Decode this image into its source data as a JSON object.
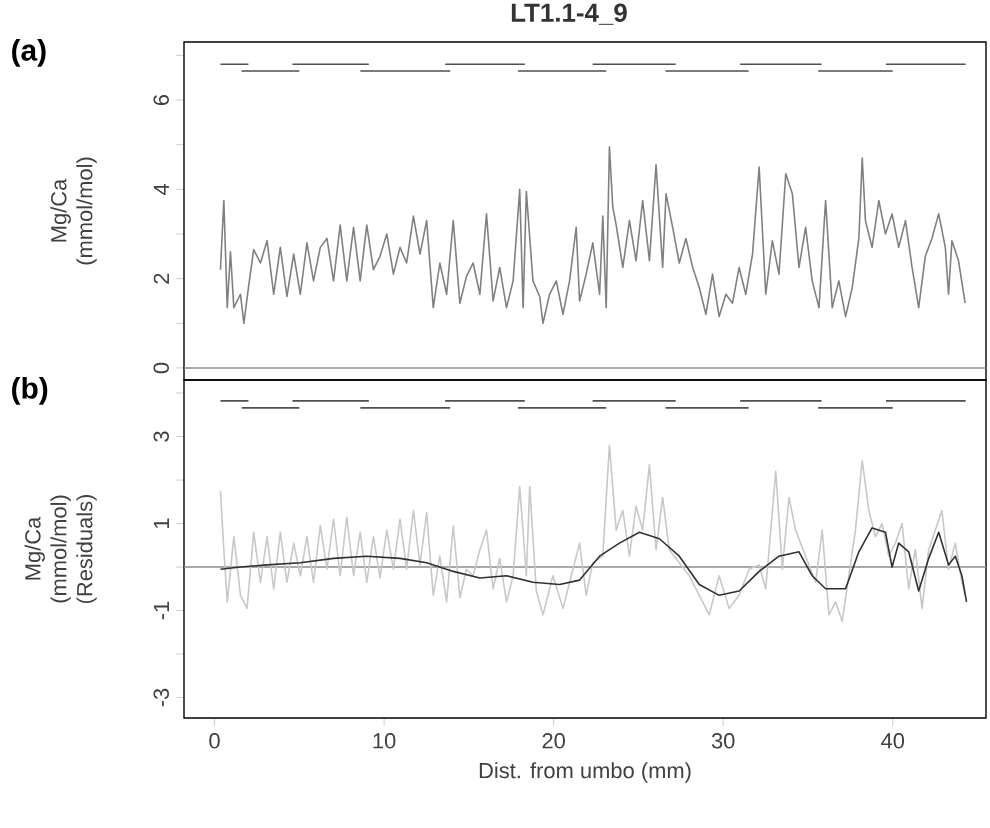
{
  "chart_data": [
    {
      "type": "line",
      "title": "LT1.1-4_9",
      "annotations": [
        "(a)"
      ],
      "ylabel": "Mg/Ca (mmol/mol)",
      "xlim": [
        -1.8,
        45.5
      ],
      "ylim": [
        -0.27,
        7.3
      ],
      "tick_labels": "y",
      "yticks": [
        0,
        {
          "value": 1,
          "label": null
        },
        2,
        {
          "value": 3,
          "label": null
        },
        4,
        {
          "value": 5,
          "label": null
        },
        6,
        {
          "value": 7,
          "label": null
        }
      ],
      "ref_lines": [
        {
          "axis": "y",
          "value": 0,
          "color": "#8c8c8c"
        }
      ],
      "series": [
        {
          "color": "#808080",
          "x": [
            0.35,
            0.55,
            0.75,
            0.94,
            1.14,
            1.53,
            1.73,
            2.0,
            2.31,
            2.71,
            3.1,
            3.49,
            3.88,
            4.27,
            4.67,
            5.06,
            5.45,
            5.84,
            6.24,
            6.63,
            7.02,
            7.41,
            7.8,
            8.2,
            8.59,
            8.98,
            9.37,
            9.76,
            10.16,
            10.55,
            10.94,
            11.33,
            11.73,
            12.12,
            12.51,
            12.9,
            13.29,
            13.69,
            14.08,
            14.47,
            14.86,
            15.25,
            15.65,
            16.04,
            16.43,
            16.82,
            17.22,
            17.61,
            18.0,
            18.2,
            18.39,
            18.78,
            19.18,
            19.37,
            19.76,
            20.16,
            20.55,
            20.94,
            21.33,
            21.53,
            21.92,
            22.31,
            22.71,
            22.9,
            23.1,
            23.29,
            23.49,
            23.69,
            24.08,
            24.47,
            24.86,
            25.25,
            25.65,
            26.04,
            26.43,
            26.63,
            27.02,
            27.41,
            27.8,
            28.2,
            28.59,
            28.98,
            29.37,
            29.76,
            30.16,
            30.55,
            30.94,
            31.33,
            31.73,
            32.12,
            32.51,
            32.9,
            33.29,
            33.69,
            34.08,
            34.47,
            34.86,
            35.25,
            35.65,
            36.04,
            36.43,
            36.82,
            37.22,
            37.61,
            38.0,
            38.2,
            38.39,
            38.78,
            39.18,
            39.57,
            39.96,
            40.35,
            40.75,
            41.14,
            41.53,
            41.92,
            42.31,
            42.71,
            43.1,
            43.29,
            43.49,
            43.88,
            44.27
          ],
          "values": [
            2.2,
            3.75,
            1.35,
            2.6,
            1.35,
            1.65,
            1.0,
            1.8,
            2.65,
            2.35,
            2.85,
            1.65,
            2.7,
            1.6,
            2.55,
            1.65,
            2.8,
            1.95,
            2.7,
            2.9,
            1.95,
            3.2,
            1.95,
            3.15,
            1.95,
            3.2,
            2.2,
            2.5,
            3.0,
            2.1,
            2.7,
            2.35,
            3.4,
            2.55,
            3.3,
            1.35,
            2.35,
            1.65,
            3.3,
            1.45,
            2.05,
            2.35,
            1.65,
            3.45,
            1.5,
            2.25,
            1.35,
            1.95,
            4.0,
            1.35,
            3.95,
            1.95,
            1.6,
            1.0,
            1.65,
            1.95,
            1.2,
            1.95,
            3.15,
            1.5,
            2.1,
            2.8,
            1.65,
            3.4,
            1.35,
            4.95,
            3.6,
            3.2,
            2.25,
            3.3,
            2.4,
            3.75,
            2.4,
            4.55,
            2.25,
            3.9,
            3.15,
            2.35,
            2.9,
            2.25,
            1.8,
            1.2,
            2.1,
            1.15,
            1.65,
            1.45,
            2.25,
            1.65,
            2.55,
            4.5,
            1.65,
            2.85,
            2.1,
            4.35,
            3.9,
            2.25,
            3.15,
            1.95,
            1.35,
            3.75,
            1.35,
            1.95,
            1.15,
            1.8,
            2.9,
            4.7,
            3.3,
            2.7,
            3.75,
            3.0,
            3.45,
            2.7,
            3.3,
            2.25,
            1.35,
            2.5,
            2.9,
            3.45,
            2.7,
            1.65,
            2.85,
            2.4,
            1.45
          ]
        },
        {
          "color": "#505050",
          "x": [
            0.35,
            2.0,
            null,
            4.6,
            9.1,
            null,
            13.6,
            18.3,
            null,
            22.3,
            27.2,
            null,
            31.0,
            35.8,
            null,
            39.6,
            44.3,
            null,
            1.6,
            5.0,
            null,
            8.6,
            13.9,
            null,
            17.9,
            23.1,
            null,
            26.6,
            31.5,
            null,
            35.6,
            40.0
          ],
          "values": [
            6.8,
            6.8,
            null,
            6.8,
            6.8,
            null,
            6.8,
            6.8,
            null,
            6.8,
            6.8,
            null,
            6.8,
            6.8,
            null,
            6.8,
            6.8,
            null,
            6.65,
            6.65,
            null,
            6.65,
            6.65,
            null,
            6.65,
            6.65,
            null,
            6.65,
            6.65,
            null,
            6.65,
            6.65
          ]
        }
      ]
    },
    {
      "type": "line",
      "annotations": [
        "(b)"
      ],
      "ylabel": "Mg/Ca (mmol/mol) (Residuals)",
      "xlabel": "Dist. from umbo (mm)",
      "xlim": [
        -1.8,
        45.5
      ],
      "ylim": [
        -3.47,
        4.3
      ],
      "xticks": [
        0,
        10,
        20,
        30,
        40
      ],
      "yticks": [
        -3,
        {
          "value": -2,
          "label": null
        },
        -1,
        {
          "value": 0,
          "label": null
        },
        1,
        {
          "value": 2,
          "label": null
        },
        3,
        {
          "value": 4,
          "label": null
        }
      ],
      "ref_lines": [
        {
          "axis": "y",
          "value": 0,
          "color": "#8c8c8c"
        }
      ],
      "series": [
        {
          "color": "#c8c8c8",
          "x": [
            0.35,
            0.55,
            0.75,
            1.14,
            1.53,
            1.92,
            2.31,
            2.71,
            3.1,
            3.49,
            3.88,
            4.27,
            4.67,
            5.06,
            5.45,
            5.84,
            6.24,
            6.63,
            7.02,
            7.41,
            7.8,
            8.2,
            8.59,
            8.98,
            9.37,
            9.76,
            10.16,
            10.55,
            10.94,
            11.33,
            11.73,
            12.12,
            12.51,
            12.9,
            13.29,
            13.69,
            14.08,
            14.47,
            14.86,
            15.25,
            15.65,
            16.04,
            16.43,
            16.82,
            17.22,
            17.61,
            18.0,
            18.39,
            18.59,
            18.98,
            19.37,
            19.96,
            20.55,
            21.14,
            21.53,
            21.92,
            22.31,
            22.9,
            23.29,
            23.69,
            24.08,
            24.47,
            24.86,
            25.25,
            25.65,
            26.04,
            26.43,
            26.82,
            27.41,
            28.0,
            28.59,
            29.18,
            29.76,
            30.35,
            30.94,
            31.53,
            32.12,
            32.51,
            33.1,
            33.49,
            33.88,
            34.27,
            34.86,
            35.45,
            35.84,
            36.24,
            36.63,
            37.02,
            37.41,
            37.8,
            38.2,
            38.59,
            38.98,
            39.37,
            39.76,
            40.16,
            40.55,
            40.94,
            41.33,
            41.73,
            42.12,
            42.51,
            42.9,
            43.29,
            43.69,
            44.08,
            44.27
          ],
          "values": [
            1.75,
            0.4,
            -0.8,
            0.7,
            -0.65,
            -0.95,
            0.8,
            -0.35,
            0.7,
            -0.5,
            0.8,
            -0.35,
            0.55,
            -0.2,
            0.7,
            -0.35,
            0.95,
            -0.05,
            1.1,
            -0.2,
            1.15,
            -0.2,
            0.8,
            -0.35,
            0.7,
            -0.25,
            0.85,
            -0.05,
            1.1,
            -0.05,
            1.3,
            0.05,
            1.25,
            -0.65,
            0.25,
            -0.8,
            0.95,
            -0.7,
            -0.05,
            -0.2,
            0.4,
            0.85,
            -0.5,
            0.2,
            -0.8,
            -0.2,
            1.85,
            -0.2,
            1.85,
            -0.55,
            -1.1,
            -0.2,
            -0.95,
            -0.05,
            0.55,
            -0.65,
            0.1,
            0.25,
            2.8,
            0.85,
            1.3,
            0.25,
            1.4,
            0.85,
            2.35,
            0.4,
            1.6,
            0.4,
            0.1,
            -0.2,
            -0.65,
            -1.1,
            -0.2,
            -0.95,
            -0.65,
            -0.05,
            0.05,
            -0.5,
            2.2,
            -0.05,
            1.6,
            0.85,
            0.25,
            -0.35,
            0.85,
            -1.1,
            -0.8,
            -1.25,
            -0.2,
            0.85,
            2.45,
            1.3,
            0.7,
            1.0,
            0.25,
            0.55,
            1.0,
            -0.5,
            0.4,
            -0.95,
            0.4,
            0.85,
            1.3,
            -0.05,
            0.55,
            -0.35,
            -0.65
          ]
        },
        {
          "color": "#303030",
          "x": [
            0.35,
            1.53,
            3.1,
            5.06,
            7.02,
            8.98,
            10.94,
            12.51,
            14.08,
            15.65,
            17.22,
            18.78,
            20.35,
            21.53,
            22.71,
            23.88,
            25.06,
            26.24,
            27.41,
            28.59,
            29.76,
            30.94,
            32.12,
            33.29,
            34.47,
            35.25,
            36.04,
            37.22,
            38.0,
            38.78,
            39.57,
            39.96,
            40.35,
            40.94,
            41.53,
            42.12,
            42.71,
            43.29,
            43.69,
            44.08,
            44.35
          ],
          "values": [
            -0.05,
            0,
            0.05,
            0.1,
            0.2,
            0.25,
            0.2,
            0.1,
            -0.1,
            -0.25,
            -0.2,
            -0.35,
            -0.4,
            -0.3,
            0.25,
            0.55,
            0.8,
            0.65,
            0.25,
            -0.4,
            -0.65,
            -0.55,
            -0.1,
            0.25,
            0.35,
            -0.2,
            -0.5,
            -0.5,
            0.35,
            0.9,
            0.8,
            0,
            0.55,
            0.35,
            -0.55,
            0.2,
            0.8,
            0.05,
            0.25,
            -0.2,
            -0.8
          ]
        },
        {
          "color": "#505050",
          "x": [
            0.35,
            2.0,
            null,
            4.6,
            9.1,
            null,
            13.6,
            18.3,
            null,
            22.3,
            27.2,
            null,
            31.0,
            35.8,
            null,
            39.6,
            44.3,
            null,
            1.6,
            5.0,
            null,
            8.6,
            13.9,
            null,
            17.9,
            23.1,
            null,
            26.6,
            31.5,
            null,
            35.6,
            40.0
          ],
          "values": [
            3.82,
            3.82,
            null,
            3.82,
            3.82,
            null,
            3.82,
            3.82,
            null,
            3.82,
            3.82,
            null,
            3.82,
            3.82,
            null,
            3.82,
            3.82,
            null,
            3.66,
            3.66,
            null,
            3.66,
            3.66,
            null,
            3.66,
            3.66,
            null,
            3.66,
            3.66,
            null,
            3.66,
            3.66
          ]
        }
      ]
    }
  ]
}
